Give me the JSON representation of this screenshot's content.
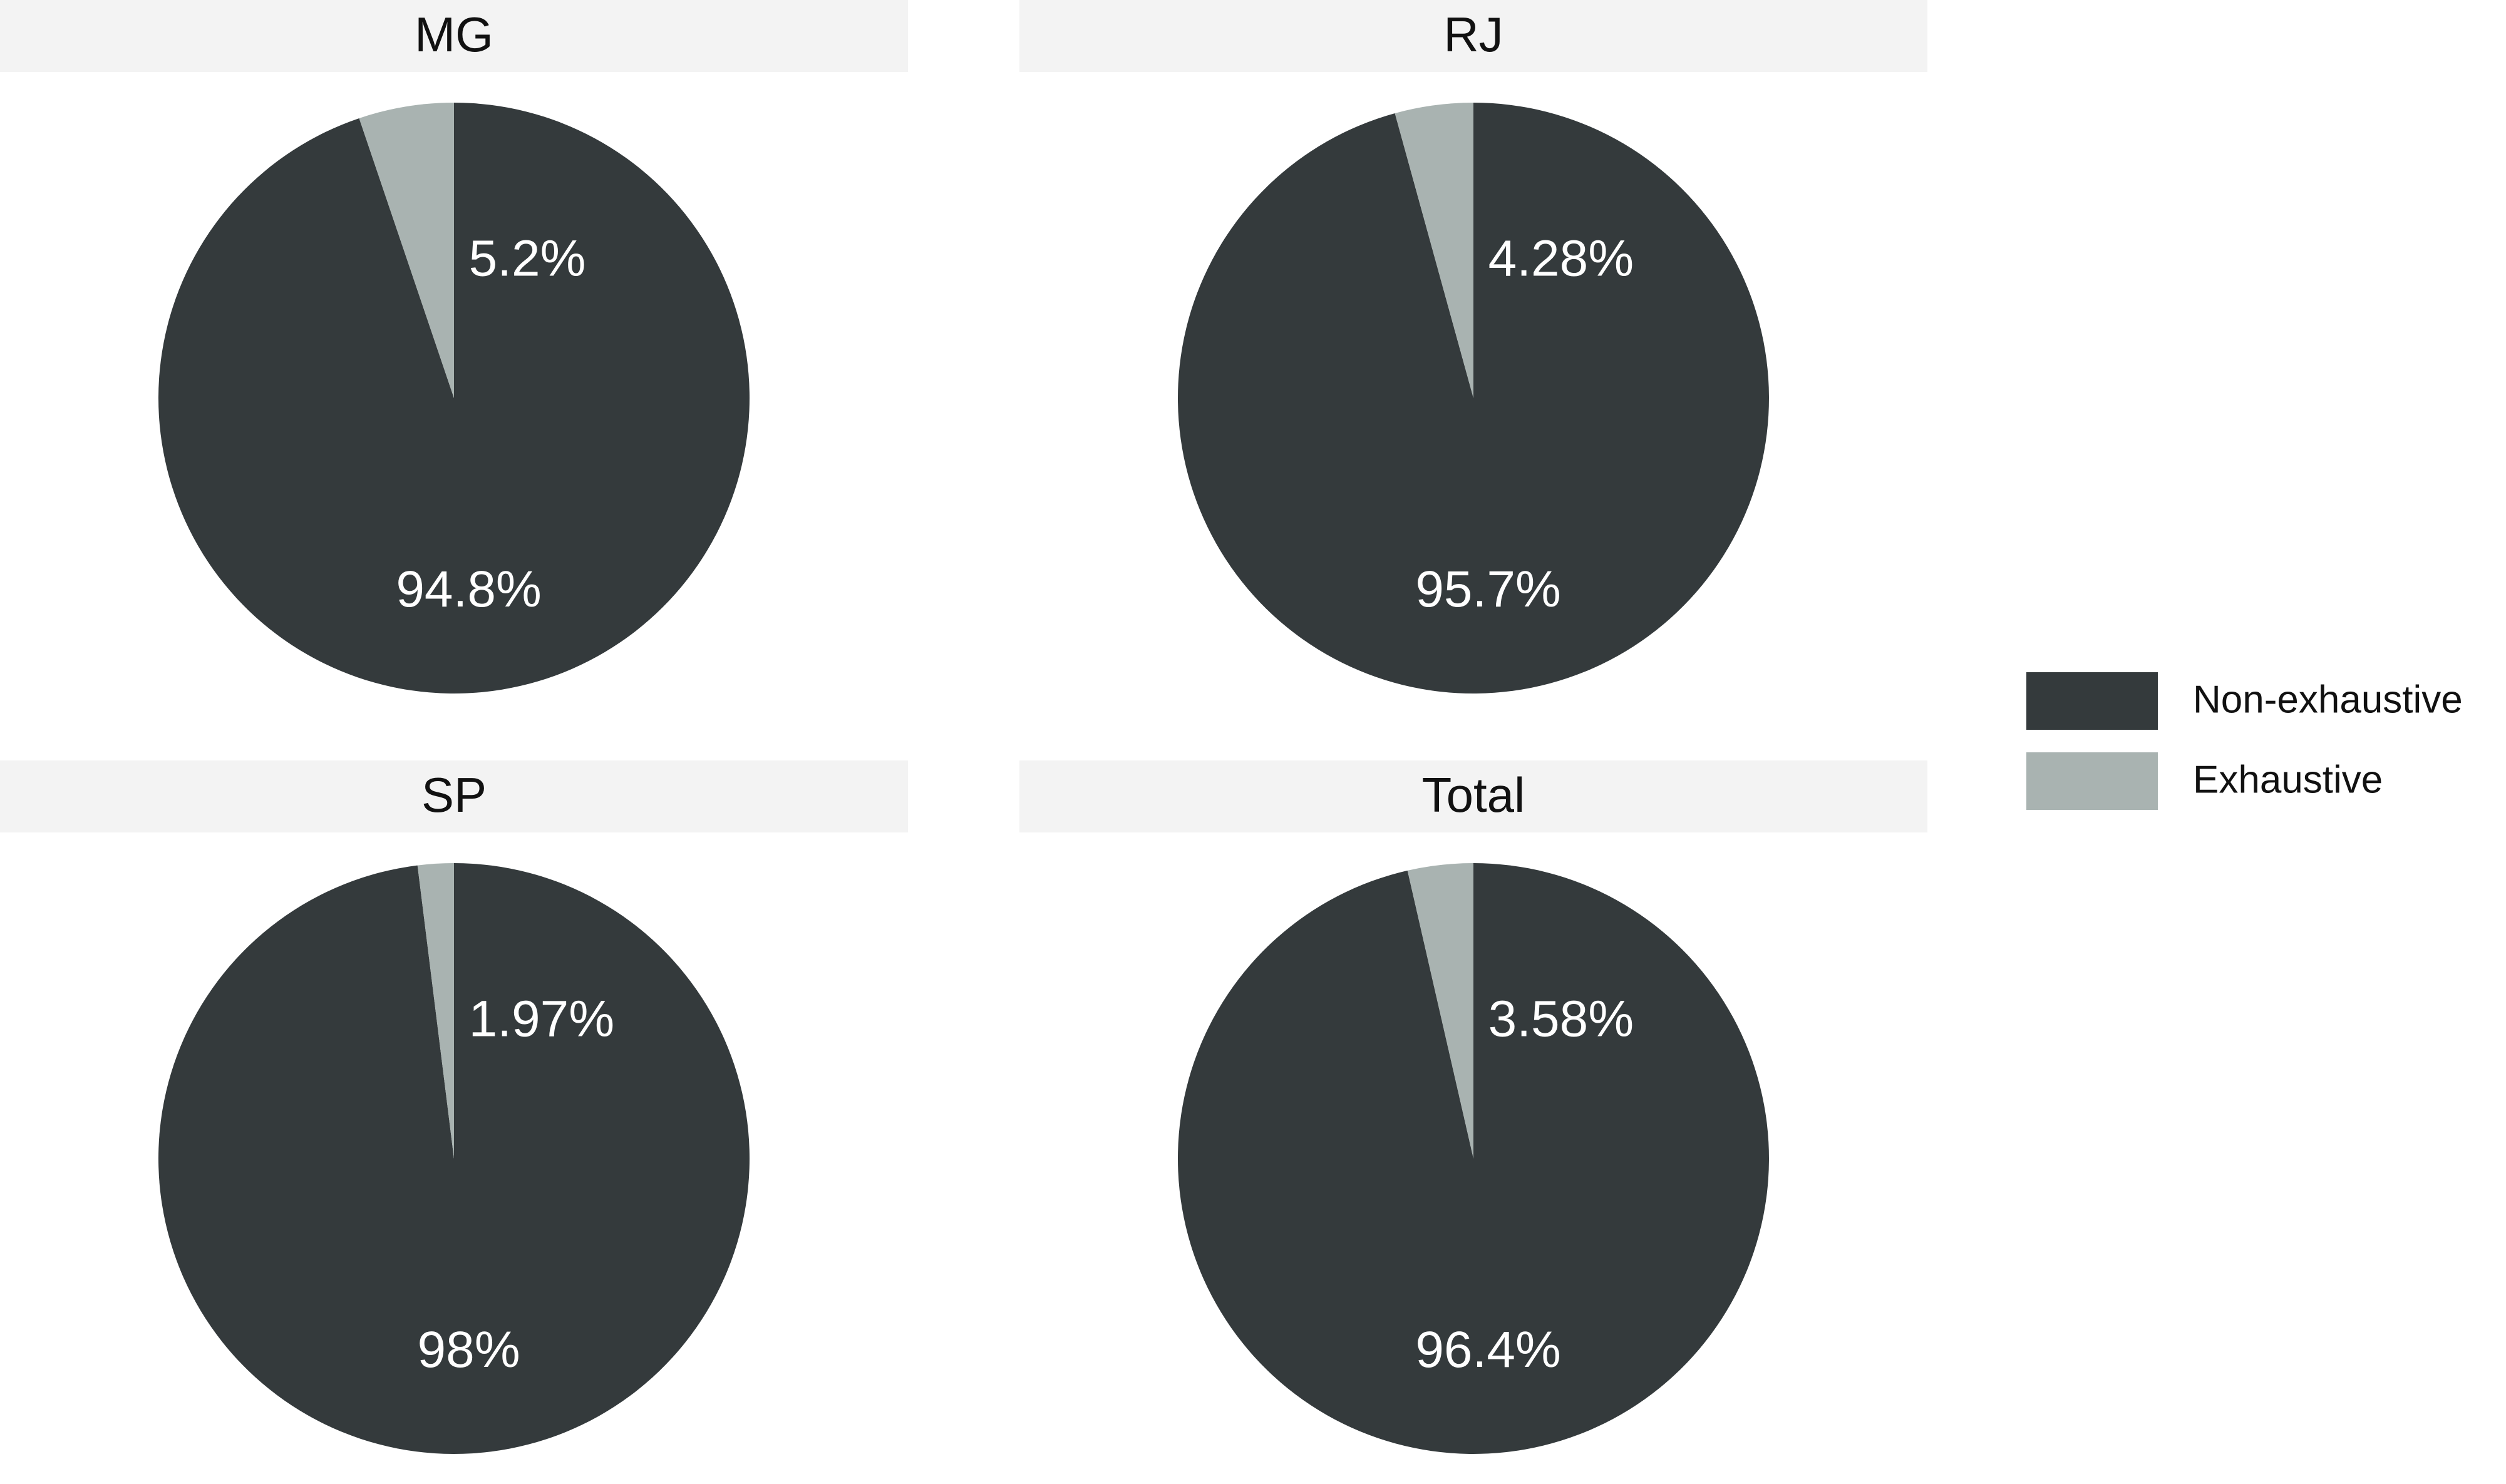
{
  "chart_data": [
    {
      "type": "pie",
      "title": "MG",
      "categories": [
        "Non-exhaustive",
        "Exhaustive"
      ],
      "values": [
        94.8,
        5.2
      ],
      "value_labels": [
        "94.8%",
        "5.2%"
      ],
      "colors": [
        "#343a3c",
        "#a9b3b1"
      ]
    },
    {
      "type": "pie",
      "title": "RJ",
      "categories": [
        "Non-exhaustive",
        "Exhaustive"
      ],
      "values": [
        95.7,
        4.28
      ],
      "value_labels": [
        "95.7%",
        "4.28%"
      ],
      "colors": [
        "#343a3c",
        "#a9b3b1"
      ]
    },
    {
      "type": "pie",
      "title": "SP",
      "categories": [
        "Non-exhaustive",
        "Exhaustive"
      ],
      "values": [
        98,
        1.97
      ],
      "value_labels": [
        "98%",
        "1.97%"
      ],
      "colors": [
        "#343a3c",
        "#a9b3b1"
      ]
    },
    {
      "type": "pie",
      "title": "Total",
      "categories": [
        "Non-exhaustive",
        "Exhaustive"
      ],
      "values": [
        96.4,
        3.58
      ],
      "value_labels": [
        "96.4%",
        "3.58%"
      ],
      "colors": [
        "#343a3c",
        "#a9b3b1"
      ]
    }
  ]
}
